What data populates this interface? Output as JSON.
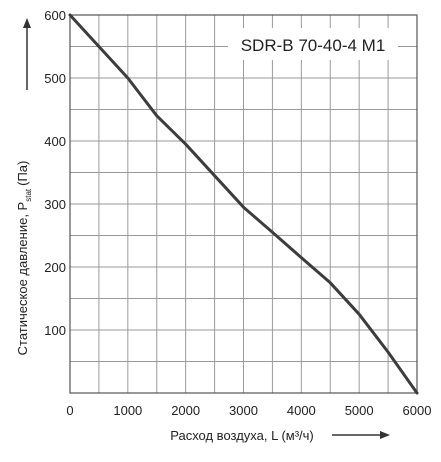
{
  "chart_data": {
    "type": "line",
    "title": "SDR-B 70-40-4 M1",
    "xlabel": "Расход воздуха, L (м³/ч)",
    "ylabel_main": "Статическое давление, P",
    "ylabel_subscript": "stat",
    "ylabel_unit": "(Па)",
    "xlim": [
      0,
      6000
    ],
    "ylim": [
      0,
      600
    ],
    "x_ticks": [
      0,
      1000,
      2000,
      3000,
      4000,
      5000,
      6000
    ],
    "y_ticks": [
      100,
      200,
      300,
      400,
      500,
      600
    ],
    "grid": true,
    "grid_minor_x": 500,
    "grid_minor_y": 50,
    "series": [
      {
        "color": "#3d3d3d",
        "x": [
          0,
          500,
          1000,
          1500,
          2000,
          2500,
          3000,
          3500,
          4000,
          4500,
          5000,
          5500,
          6000
        ],
        "y": [
          600,
          550,
          500,
          440,
          395,
          345,
          295,
          255,
          215,
          175,
          125,
          65,
          0
        ]
      }
    ]
  }
}
